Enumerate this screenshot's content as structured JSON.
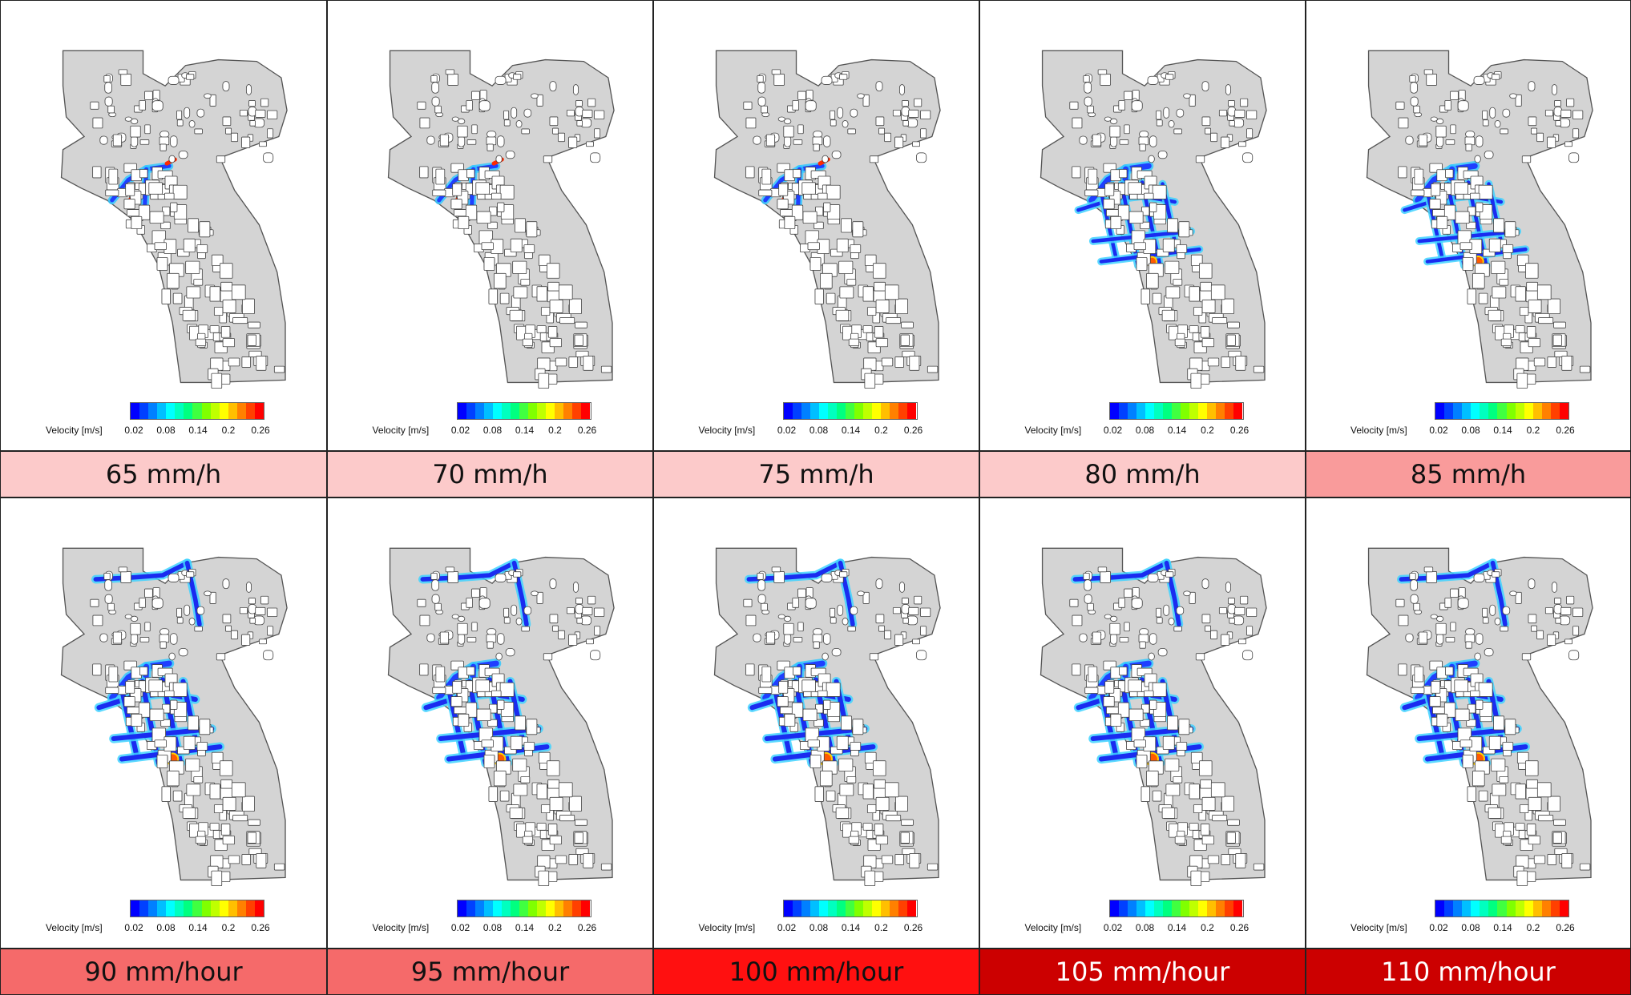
{
  "legend": {
    "label": "Velocity [m/s]",
    "ticks": [
      "0.02",
      "0.08",
      "0.14",
      "0.2",
      "0.26"
    ],
    "colors": [
      "#0000ff",
      "#0040ff",
      "#0080ff",
      "#00bfff",
      "#00ffff",
      "#00ffbf",
      "#00ff80",
      "#40ff40",
      "#80ff00",
      "#bfff00",
      "#ffff00",
      "#ffbf00",
      "#ff8000",
      "#ff4000",
      "#ff0000"
    ]
  },
  "panels": [
    {
      "caption": "65 mm/h",
      "caption_bg": "#fccaca",
      "text_color": "#111111",
      "flooding_level": 1
    },
    {
      "caption": "70 mm/h",
      "caption_bg": "#fccaca",
      "text_color": "#111111",
      "flooding_level": 1
    },
    {
      "caption": "75 mm/h",
      "caption_bg": "#fccaca",
      "text_color": "#111111",
      "flooding_level": 2
    },
    {
      "caption": "80 mm/h",
      "caption_bg": "#fccaca",
      "text_color": "#111111",
      "flooding_level": 3
    },
    {
      "caption": "85 mm/h",
      "caption_bg": "#f99b9b",
      "text_color": "#111111",
      "flooding_level": 4
    },
    {
      "caption": "90 mm/hour",
      "caption_bg": "#f56a6a",
      "text_color": "#111111",
      "flooding_level": 5
    },
    {
      "caption": "95 mm/hour",
      "caption_bg": "#f56a6a",
      "text_color": "#111111",
      "flooding_level": 5
    },
    {
      "caption": "100 mm/hour",
      "caption_bg": "#ff1010",
      "text_color": "#111111",
      "flooding_level": 6
    },
    {
      "caption": "105 mm/hour",
      "caption_bg": "#cc0000",
      "text_color": "#ffffff",
      "flooding_level": 6
    },
    {
      "caption": "110 mm/hour",
      "caption_bg": "#cc0000",
      "text_color": "#ffffff",
      "flooding_level": 6
    }
  ]
}
